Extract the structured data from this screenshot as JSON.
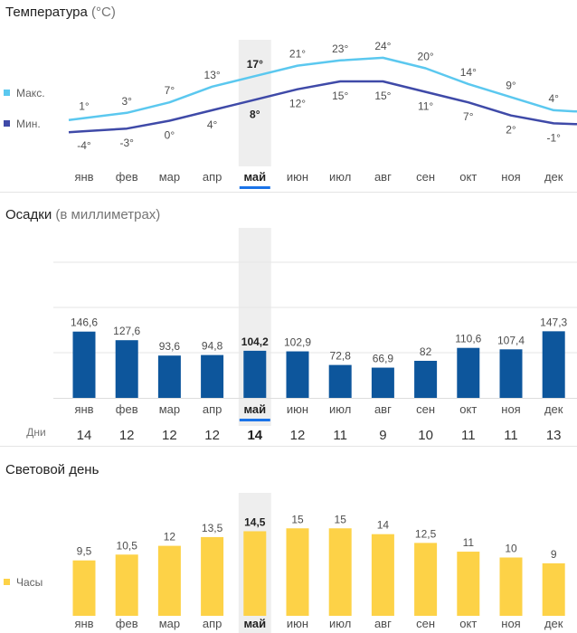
{
  "months": [
    "янв",
    "фев",
    "мар",
    "апр",
    "май",
    "июн",
    "июл",
    "авг",
    "сен",
    "окт",
    "ноя",
    "дек"
  ],
  "selected_index": 4,
  "colors": {
    "max_line": "#5bc8ef",
    "min_line": "#3f4aa8",
    "precip_bar": "#0d569c",
    "daylight_bar": "#fdd247",
    "highlight": "#eeeeee",
    "underline": "#1a73e8"
  },
  "temperature": {
    "title": "Температура",
    "unit": "(°C)",
    "legend_max": "Макс.",
    "legend_min": "Мин."
  },
  "precipitation": {
    "title": "Осадки",
    "unit": "(в миллиметрах)",
    "days_label": "Дни",
    "days": [
      14,
      12,
      12,
      12,
      14,
      12,
      11,
      9,
      10,
      11,
      11,
      13
    ]
  },
  "daylight": {
    "title": "Световой день",
    "legend": "Часы"
  },
  "chart_data": [
    {
      "type": "line",
      "title": "Температура (°C)",
      "categories": [
        "янв",
        "фев",
        "мар",
        "апр",
        "май",
        "июн",
        "июл",
        "авг",
        "сен",
        "окт",
        "ноя",
        "дек"
      ],
      "series": [
        {
          "name": "Макс.",
          "values": [
            1,
            3,
            7,
            13,
            17,
            21,
            23,
            24,
            20,
            14,
            9,
            4
          ],
          "labels": [
            "1°",
            "3°",
            "7°",
            "13°",
            "17°",
            "21°",
            "23°",
            "24°",
            "20°",
            "14°",
            "9°",
            "4°"
          ]
        },
        {
          "name": "Мин.",
          "values": [
            -4,
            -3,
            0,
            4,
            8,
            12,
            15,
            15,
            11,
            7,
            2,
            -1
          ],
          "labels": [
            "-4°",
            "-3°",
            "0°",
            "4°",
            "8°",
            "12°",
            "15°",
            "15°",
            "11°",
            "7°",
            "2°",
            "-1°"
          ]
        }
      ]
    },
    {
      "type": "bar",
      "title": "Осадки (в миллиметрах)",
      "categories": [
        "янв",
        "фев",
        "мар",
        "апр",
        "май",
        "июн",
        "июл",
        "авг",
        "сен",
        "окт",
        "ноя",
        "дек"
      ],
      "values": [
        146.6,
        127.6,
        93.6,
        94.8,
        104.2,
        102.9,
        72.8,
        66.9,
        82,
        110.6,
        107.4,
        147.3
      ],
      "labels": [
        "146,6",
        "127,6",
        "93,6",
        "94,8",
        "104,2",
        "102,9",
        "72,8",
        "66,9",
        "82",
        "110,6",
        "107,4",
        "147,3"
      ],
      "ylim": [
        0,
        300
      ]
    },
    {
      "type": "bar",
      "title": "Световой день",
      "legend": "Часы",
      "categories": [
        "янв",
        "фев",
        "мар",
        "апр",
        "май",
        "июн",
        "июл",
        "авг",
        "сен",
        "окт",
        "ноя",
        "дек"
      ],
      "values": [
        9.5,
        10.5,
        12,
        13.5,
        14.5,
        15,
        15,
        14,
        12.5,
        11,
        10,
        9
      ],
      "labels": [
        "9,5",
        "10,5",
        "12",
        "13,5",
        "14,5",
        "15",
        "15",
        "14",
        "12,5",
        "11",
        "10",
        "9"
      ],
      "ylim": [
        0,
        24
      ]
    }
  ]
}
